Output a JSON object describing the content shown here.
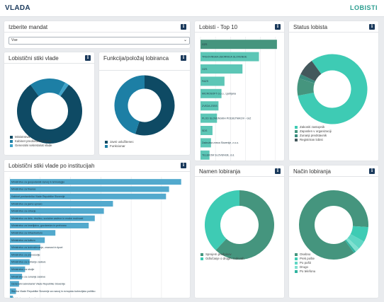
{
  "header": {
    "brand": "VLADA",
    "nav_link": "LOBISTI"
  },
  "colors": {
    "dark_teal": "#0e4a64",
    "mid_blue": "#1d7fa5",
    "light_blue": "#3fa3c9",
    "teal": "#3ecbb4",
    "green": "#45957e",
    "bar_teal": "#5cc6b6",
    "bar_blue": "#52a9cd",
    "darkgray": "#44585c"
  },
  "icons": {
    "info": "info-icon",
    "dropdown": "chevron-down-icon"
  },
  "mandate": {
    "title": "Izberite mandat",
    "selected": "Vse",
    "info": "i"
  },
  "stiki_vlade": {
    "title": "Lobistični stiki vlade",
    "info": "i",
    "legend": [
      "Ministrstva",
      "Kabinet predsednika vlade",
      "Generalni sekretariat vlade"
    ],
    "colors": [
      "#0e4a64",
      "#1d7fa5",
      "#3fa3c9"
    ],
    "values": [
      0.8,
      0.18,
      0.02
    ]
  },
  "funkcija": {
    "title": "Funkcija/položaj lobiranca",
    "info": "i",
    "legend": [
      "Javni uslužbenec",
      "Funkcionar"
    ],
    "colors": [
      "#0e4a64",
      "#1d7fa5"
    ],
    "values": [
      0.55,
      0.45
    ]
  },
  "po_institucijah": {
    "title": "Lobistični stiki vlade po institucijah",
    "info": "i",
    "chart_data": {
      "type": "bar",
      "categories": [
        "Ministrstvo za gospodarski razvoj in tehnologijo",
        "Ministrstvo za finance",
        "Kabinet predsednika Vlade Republike Slovenije",
        "Ministrstvo za javno upravo",
        "Ministrstvo za zdravje",
        "Ministrstvo za delo, družino, socialne zadeve in enake možnosti",
        "Ministrstvo za kmetijstvo, gozdarstvo in prehrano",
        "Ministrstvo za infrastrukturo",
        "Ministrstvo za kulturo",
        "Ministrstvo za izobraževanje, znanost in šport",
        "Ministrstvo za pravosodje",
        "Ministrstvo za notranje zadeve",
        "Ministrstvo za okolje",
        "Ministrstvo za zunanje zadeve",
        "Generalni sekretariat Vlade Republike Slovenije",
        "Služba Vlade Republike Slovenije za razvoj in evropsko kohezijsko politiko",
        "Ministrstvo za obrambo"
      ],
      "values": [
        1130,
        1050,
        1030,
        680,
        620,
        560,
        520,
        300,
        230,
        200,
        140,
        130,
        100,
        80,
        60,
        40,
        20
      ],
      "xticks": [
        "0",
        "200",
        "400",
        "600",
        "800",
        "1.000"
      ],
      "xlim": [
        0,
        1150
      ]
    }
  },
  "top10": {
    "title": "Lobisti - Top 10",
    "info": "i",
    "chart_data": {
      "type": "bar",
      "categories": [
        "GZS",
        "TRGOVINSKA ZBORNICA SLOVENIJE",
        "OZS",
        "FAZS",
        "MICROSOFT d.o.o., Ljubljana",
        "ZVEZA ZSSS",
        "PLOD SLOVENSKIH PODJETNIKOV - GIZ",
        "SDS",
        "Zadružna zveza Slovenije, z.o.o.",
        "TELEKOM SLOVENIJE, d.d."
      ],
      "values": [
        255,
        195,
        140,
        80,
        70,
        60,
        55,
        40,
        35,
        30
      ],
      "xticks": [
        "0",
        "50",
        "100",
        "150",
        "200",
        "250"
      ],
      "xlim": [
        0,
        260
      ]
    }
  },
  "status": {
    "title": "Status lobista",
    "info": "i",
    "legend": [
      "Zakoniti zastopnik",
      "Zaposlen v organizaciji",
      "Zunanji predstavnik",
      "Registriran lobist"
    ],
    "colors": [
      "#3ecbb4",
      "#45957e",
      "#3a8c7e",
      "#44585c"
    ],
    "values": [
      0.82,
      0.08,
      0.02,
      0.08
    ]
  },
  "namen": {
    "title": "Namen lobiranja",
    "info": "i",
    "legend": [
      "Sprejem predpisov",
      "Odločanje o drugih zadevah"
    ],
    "colors": [
      "#45957e",
      "#3ecbb4"
    ],
    "values": [
      0.62,
      0.38
    ]
  },
  "nacin": {
    "title": "Način lobiranja",
    "info": "i",
    "legend": [
      "Osebno",
      "Prek pošte",
      "Po pošti",
      "Drugo",
      "Po telefonu"
    ],
    "colors": [
      "#45957e",
      "#3ecbb4",
      "#5fd6c4",
      "#7fe0d0",
      "#2fb4a0"
    ],
    "values": [
      0.86,
      0.07,
      0.04,
      0.02,
      0.01
    ]
  }
}
